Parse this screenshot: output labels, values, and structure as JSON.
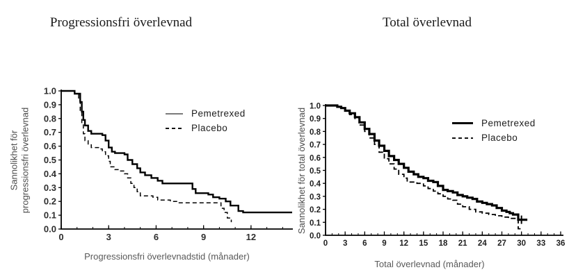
{
  "figure": {
    "background": "#ffffff",
    "text_color": "#1a1a1a",
    "muted_color": "#595959",
    "curve_color": "#000000",
    "left_legend_sample_color": "#7a7a7a"
  },
  "chart_data": [
    {
      "type": "line",
      "subtype": "kaplan-meier-step",
      "title": "Progressionsfri överlevnad",
      "xlabel": "Progressionsfri överlevnadstid (månader)",
      "ylabel_lines": [
        "Sannolikhet för",
        "progressionsfri överlevnad"
      ],
      "xlim": [
        0,
        14.6
      ],
      "ylim": [
        0,
        1
      ],
      "xticks": [
        0,
        3,
        6,
        9,
        12
      ],
      "xminor_step": 1,
      "yticks": [
        1.0,
        0.9,
        0.8,
        0.7,
        0.6,
        0.5,
        0.4,
        0.3,
        0.2,
        0.1,
        0.0
      ],
      "grid": false,
      "legend_position": "upper-right-inside",
      "series": [
        {
          "name": "Pemetrexed",
          "line_style": "solid",
          "points": [
            [
              0,
              1.0
            ],
            [
              0.8,
              1.0
            ],
            [
              0.85,
              0.98
            ],
            [
              1.1,
              0.98
            ],
            [
              1.2,
              0.92
            ],
            [
              1.3,
              0.85
            ],
            [
              1.4,
              0.79
            ],
            [
              1.5,
              0.75
            ],
            [
              1.7,
              0.71
            ],
            [
              1.9,
              0.69
            ],
            [
              2.6,
              0.68
            ],
            [
              2.8,
              0.64
            ],
            [
              3.0,
              0.59
            ],
            [
              3.2,
              0.56
            ],
            [
              3.4,
              0.55
            ],
            [
              4.0,
              0.54
            ],
            [
              4.2,
              0.5
            ],
            [
              4.5,
              0.47
            ],
            [
              4.8,
              0.44
            ],
            [
              5.0,
              0.41
            ],
            [
              5.3,
              0.39
            ],
            [
              5.7,
              0.37
            ],
            [
              6.1,
              0.35
            ],
            [
              6.4,
              0.33
            ],
            [
              8.1,
              0.33
            ],
            [
              8.3,
              0.29
            ],
            [
              8.5,
              0.26
            ],
            [
              9.3,
              0.25
            ],
            [
              9.6,
              0.23
            ],
            [
              10.0,
              0.22
            ],
            [
              10.4,
              0.2
            ],
            [
              10.7,
              0.17
            ],
            [
              11.2,
              0.13
            ],
            [
              11.5,
              0.12
            ],
            [
              14.6,
              0.12
            ]
          ]
        },
        {
          "name": "Placebo",
          "line_style": "dashed",
          "points": [
            [
              0,
              1.0
            ],
            [
              0.8,
              1.0
            ],
            [
              0.85,
              0.98
            ],
            [
              1.0,
              0.98
            ],
            [
              1.1,
              0.93
            ],
            [
              1.2,
              0.85
            ],
            [
              1.3,
              0.76
            ],
            [
              1.4,
              0.69
            ],
            [
              1.5,
              0.64
            ],
            [
              1.7,
              0.61
            ],
            [
              1.9,
              0.59
            ],
            [
              2.4,
              0.58
            ],
            [
              2.6,
              0.56
            ],
            [
              2.8,
              0.53
            ],
            [
              3.0,
              0.49
            ],
            [
              3.1,
              0.45
            ],
            [
              3.4,
              0.43
            ],
            [
              3.7,
              0.42
            ],
            [
              4.0,
              0.4
            ],
            [
              4.2,
              0.37
            ],
            [
              4.4,
              0.33
            ],
            [
              4.6,
              0.3
            ],
            [
              4.8,
              0.27
            ],
            [
              5.0,
              0.24
            ],
            [
              5.8,
              0.23
            ],
            [
              6.1,
              0.21
            ],
            [
              6.9,
              0.2
            ],
            [
              7.3,
              0.19
            ],
            [
              9.9,
              0.19
            ],
            [
              10.1,
              0.15
            ],
            [
              10.3,
              0.12
            ],
            [
              10.5,
              0.08
            ],
            [
              10.75,
              0.05
            ]
          ]
        }
      ]
    },
    {
      "type": "line",
      "subtype": "kaplan-meier-step",
      "title": "Total överlevnad",
      "xlabel": "Total överlevnad (månader)",
      "ylabel_lines": [
        "Sannolikhet för total överlevnad"
      ],
      "xlim": [
        0,
        36
      ],
      "ylim": [
        0,
        1
      ],
      "xticks": [
        0,
        3,
        6,
        9,
        12,
        15,
        18,
        21,
        24,
        27,
        30,
        33,
        36
      ],
      "xminor_step": 1,
      "yticks": [
        1.0,
        0.9,
        0.8,
        0.7,
        0.6,
        0.5,
        0.4,
        0.3,
        0.2,
        0.1,
        0.0
      ],
      "grid": false,
      "legend_position": "upper-right-inside",
      "censor_marks": [
        {
          "series": "Pemetrexed",
          "x": 30.0,
          "y": 0.12
        }
      ],
      "series": [
        {
          "name": "Pemetrexed",
          "line_style": "solid",
          "points": [
            [
              0,
              1.0
            ],
            [
              1.2,
              1.0
            ],
            [
              1.8,
              0.99
            ],
            [
              2.4,
              0.98
            ],
            [
              3.0,
              0.96
            ],
            [
              3.7,
              0.94
            ],
            [
              4.5,
              0.91
            ],
            [
              5.2,
              0.87
            ],
            [
              6.0,
              0.82
            ],
            [
              6.7,
              0.78
            ],
            [
              7.5,
              0.73
            ],
            [
              8.2,
              0.69
            ],
            [
              9.0,
              0.65
            ],
            [
              9.7,
              0.61
            ],
            [
              10.5,
              0.58
            ],
            [
              11.2,
              0.55
            ],
            [
              12.0,
              0.52
            ],
            [
              12.7,
              0.49
            ],
            [
              13.5,
              0.47
            ],
            [
              14.2,
              0.45
            ],
            [
              15.0,
              0.44
            ],
            [
              15.7,
              0.42
            ],
            [
              16.5,
              0.41
            ],
            [
              17.2,
              0.38
            ],
            [
              18.0,
              0.35
            ],
            [
              18.7,
              0.34
            ],
            [
              19.5,
              0.33
            ],
            [
              20.2,
              0.31
            ],
            [
              21.0,
              0.3
            ],
            [
              21.7,
              0.29
            ],
            [
              22.5,
              0.28
            ],
            [
              23.2,
              0.26
            ],
            [
              24.0,
              0.25
            ],
            [
              24.7,
              0.24
            ],
            [
              25.5,
              0.23
            ],
            [
              26.2,
              0.21
            ],
            [
              27.0,
              0.19
            ],
            [
              27.7,
              0.18
            ],
            [
              28.2,
              0.17
            ],
            [
              28.7,
              0.16
            ],
            [
              29.5,
              0.12
            ],
            [
              30.9,
              0.12
            ]
          ]
        },
        {
          "name": "Placebo",
          "line_style": "dashed",
          "points": [
            [
              0,
              1.0
            ],
            [
              1.2,
              1.0
            ],
            [
              1.8,
              0.99
            ],
            [
              2.4,
              0.98
            ],
            [
              3.0,
              0.96
            ],
            [
              3.7,
              0.93
            ],
            [
              4.5,
              0.9
            ],
            [
              5.2,
              0.85
            ],
            [
              6.0,
              0.8
            ],
            [
              6.7,
              0.75
            ],
            [
              7.5,
              0.7
            ],
            [
              8.2,
              0.64
            ],
            [
              9.0,
              0.59
            ],
            [
              9.7,
              0.55
            ],
            [
              10.5,
              0.51
            ],
            [
              11.2,
              0.47
            ],
            [
              12.0,
              0.44
            ],
            [
              12.5,
              0.41
            ],
            [
              14.0,
              0.4
            ],
            [
              15.0,
              0.38
            ],
            [
              15.7,
              0.36
            ],
            [
              16.5,
              0.34
            ],
            [
              17.2,
              0.32
            ],
            [
              18.0,
              0.3
            ],
            [
              18.7,
              0.28
            ],
            [
              19.5,
              0.27
            ],
            [
              20.2,
              0.24
            ],
            [
              21.0,
              0.22
            ],
            [
              22.0,
              0.2
            ],
            [
              23.0,
              0.18
            ],
            [
              24.0,
              0.17
            ],
            [
              25.0,
              0.16
            ],
            [
              26.0,
              0.15
            ],
            [
              27.0,
              0.14
            ],
            [
              28.0,
              0.13
            ],
            [
              29.3,
              0.13
            ],
            [
              29.5,
              0.05
            ],
            [
              30.1,
              0.05
            ]
          ]
        }
      ]
    }
  ]
}
